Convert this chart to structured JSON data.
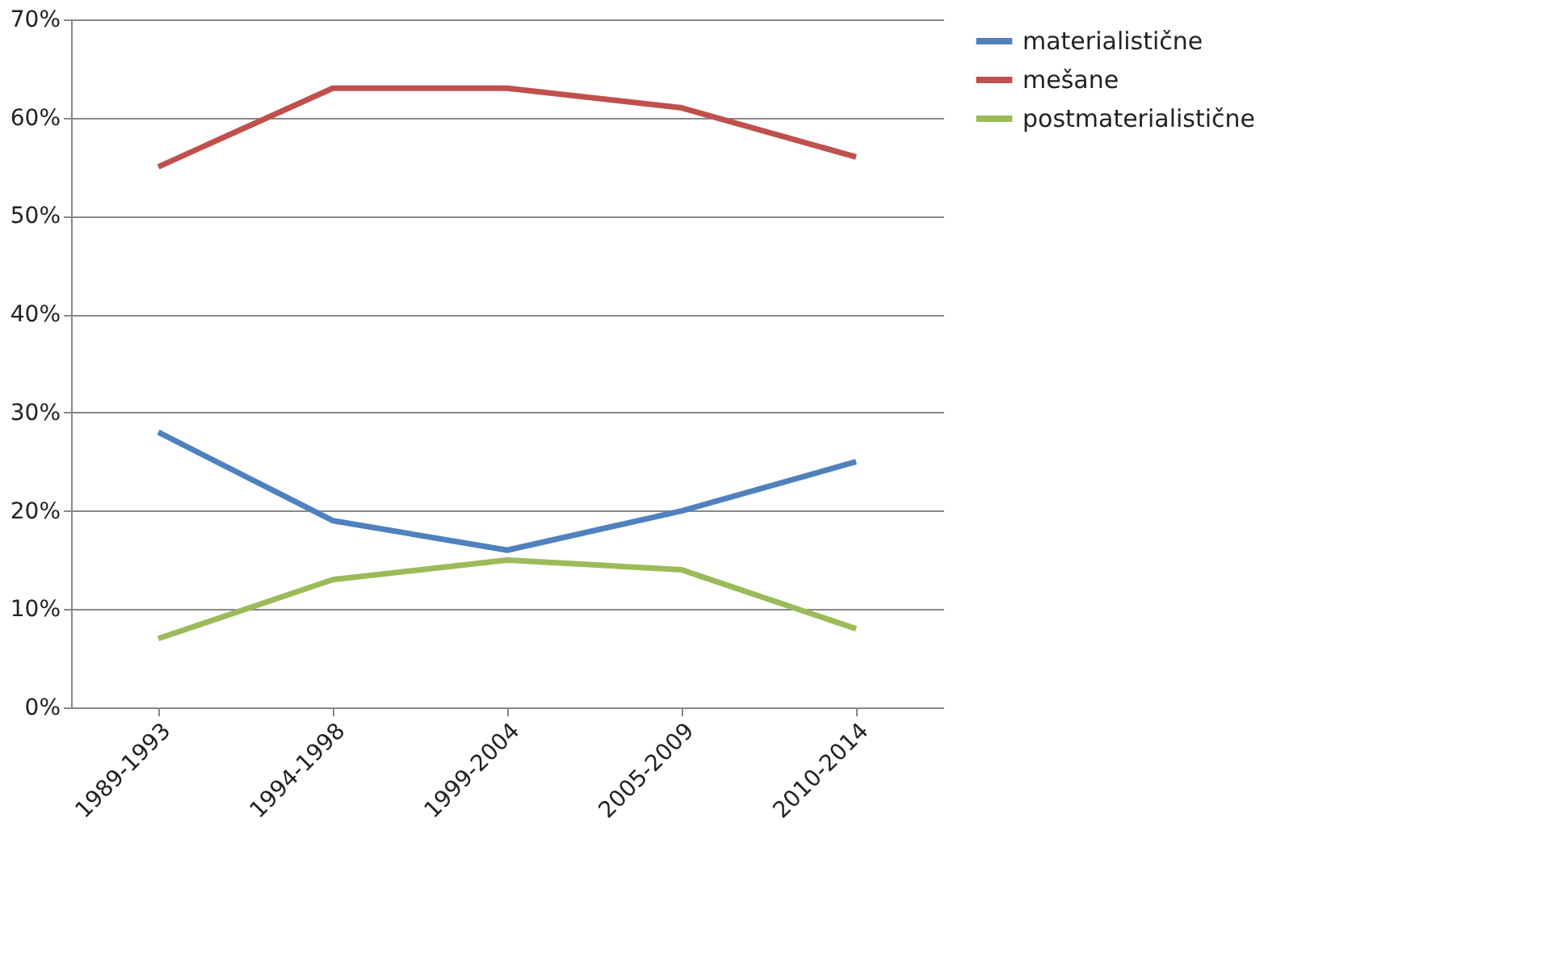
{
  "chart_data": {
    "type": "line",
    "categories": [
      "1989-1993",
      "1994-1998",
      "1999-2004",
      "2005-2009",
      "2010-2014"
    ],
    "series": [
      {
        "name": "materialistične",
        "color": "#4f81bd",
        "values": [
          28,
          19,
          16,
          20,
          25
        ]
      },
      {
        "name": "mešane",
        "color": "#c0504d",
        "values": [
          55,
          63,
          63,
          61,
          56
        ]
      },
      {
        "name": "postmaterialistične",
        "color": "#9bbb59",
        "values": [
          7,
          13,
          15,
          14,
          8
        ]
      }
    ],
    "ylim": [
      0,
      70
    ],
    "yticks": [
      {
        "value": 0,
        "label": "0%"
      },
      {
        "value": 10,
        "label": "10%"
      },
      {
        "value": 20,
        "label": "20%"
      },
      {
        "value": 30,
        "label": "30%"
      },
      {
        "value": 40,
        "label": "40%"
      },
      {
        "value": 50,
        "label": "50%"
      },
      {
        "value": 60,
        "label": "60%"
      },
      {
        "value": 70,
        "label": "70%"
      }
    ],
    "grid": "y",
    "legend": "right",
    "marker": "none",
    "line_style": "solid"
  }
}
